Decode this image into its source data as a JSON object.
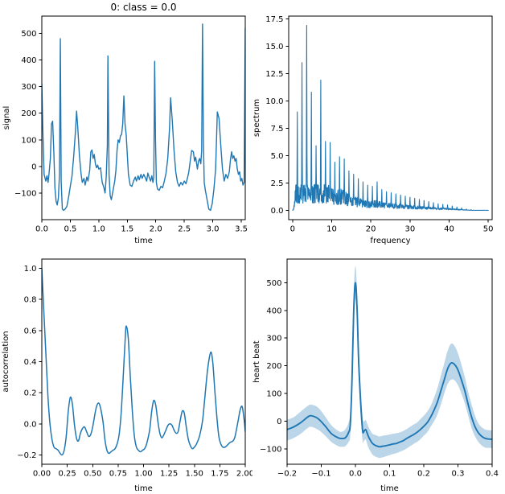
{
  "figure": {
    "background": "#ffffff",
    "line_color": "#1f77b4",
    "band_fill": "rgba(31,119,180,0.30)",
    "axis_color": "#000000",
    "text_color": "#000000"
  },
  "chart_data": [
    {
      "id": "signal",
      "type": "line",
      "title": "0: class = 0.0",
      "xlabel": "time",
      "ylabel": "signal",
      "xlim": [
        0,
        3.57
      ],
      "ylim": [
        -200,
        565
      ],
      "xticks": [
        0,
        0.5,
        1.0,
        1.5,
        2.0,
        2.5,
        3.0,
        3.5
      ],
      "xtick_labels": [
        "0.0",
        "0.5",
        "1.0",
        "1.5",
        "2.0",
        "2.5",
        "3.0",
        "3.5"
      ],
      "yticks": [
        -100,
        0,
        100,
        200,
        300,
        400,
        500
      ],
      "ytick_labels": [
        "−100",
        "0",
        "100",
        "200",
        "300",
        "400",
        "500"
      ],
      "grid": false,
      "x": [
        0.0,
        0.02,
        0.04,
        0.07,
        0.09,
        0.11,
        0.13,
        0.15,
        0.17,
        0.19,
        0.21,
        0.23,
        0.25,
        0.27,
        0.29,
        0.31,
        0.325,
        0.34,
        0.36,
        0.38,
        0.41,
        0.44,
        0.47,
        0.5,
        0.53,
        0.56,
        0.59,
        0.61,
        0.63,
        0.66,
        0.69,
        0.71,
        0.74,
        0.76,
        0.79,
        0.81,
        0.84,
        0.86,
        0.88,
        0.9,
        0.92,
        0.94,
        0.96,
        0.98,
        1.0,
        1.03,
        1.06,
        1.09,
        1.11,
        1.13,
        1.15,
        1.16,
        1.18,
        1.2,
        1.22,
        1.25,
        1.28,
        1.3,
        1.32,
        1.34,
        1.36,
        1.38,
        1.4,
        1.42,
        1.44,
        1.46,
        1.48,
        1.5,
        1.52,
        1.55,
        1.58,
        1.61,
        1.64,
        1.66,
        1.69,
        1.71,
        1.74,
        1.76,
        1.79,
        1.81,
        1.84,
        1.86,
        1.89,
        1.91,
        1.93,
        1.95,
        1.965,
        1.98,
        1.995,
        2.01,
        2.03,
        2.06,
        2.09,
        2.12,
        2.15,
        2.18,
        2.21,
        2.24,
        2.26,
        2.29,
        2.32,
        2.35,
        2.38,
        2.41,
        2.44,
        2.47,
        2.5,
        2.53,
        2.56,
        2.58,
        2.61,
        2.63,
        2.66,
        2.68,
        2.7,
        2.73,
        2.75,
        2.77,
        2.79,
        2.805,
        2.82,
        2.835,
        2.85,
        2.87,
        2.9,
        2.93,
        2.96,
        2.99,
        3.02,
        3.05,
        3.08,
        3.11,
        3.14,
        3.17,
        3.2,
        3.23,
        3.26,
        3.29,
        3.31,
        3.33,
        3.35,
        3.37,
        3.39,
        3.41,
        3.43,
        3.45,
        3.47,
        3.49,
        3.51,
        3.53,
        3.55,
        3.57
      ],
      "y": [
        310,
        120,
        -30,
        -55,
        -35,
        -60,
        -20,
        30,
        160,
        170,
        60,
        -80,
        -130,
        -145,
        -120,
        -30,
        480,
        -60,
        -160,
        -165,
        -160,
        -150,
        -115,
        -75,
        -35,
        40,
        130,
        208,
        150,
        40,
        -30,
        -60,
        -45,
        -70,
        -40,
        -55,
        -15,
        55,
        62,
        30,
        45,
        10,
        -5,
        5,
        -10,
        -5,
        -60,
        -80,
        -100,
        -40,
        80,
        415,
        -30,
        -110,
        -125,
        -90,
        -55,
        -15,
        60,
        100,
        90,
        115,
        120,
        160,
        265,
        160,
        120,
        45,
        -30,
        -70,
        -75,
        -55,
        -40,
        -55,
        -35,
        -50,
        -30,
        -45,
        -30,
        -40,
        -55,
        -25,
        -45,
        -55,
        -35,
        -60,
        -40,
        395,
        100,
        -60,
        -85,
        -90,
        -75,
        -80,
        -55,
        -25,
        30,
        140,
        258,
        170,
        60,
        -20,
        -60,
        -75,
        -60,
        -70,
        -55,
        -65,
        -40,
        -20,
        30,
        60,
        55,
        20,
        35,
        -10,
        20,
        30,
        10,
        60,
        535,
        100,
        -60,
        -90,
        -125,
        -160,
        -165,
        -140,
        -85,
        -10,
        205,
        180,
        80,
        -10,
        -55,
        -30,
        -45,
        -20,
        25,
        55,
        30,
        40,
        20,
        30,
        -10,
        -30,
        -20,
        -55,
        -45,
        -70,
        -60,
        520
      ]
    },
    {
      "id": "spectrum",
      "type": "line",
      "title": "",
      "xlabel": "frequency",
      "ylabel": "spectrum",
      "xlim": [
        -1,
        51
      ],
      "ylim": [
        -0.85,
        17.75
      ],
      "xticks": [
        0,
        10,
        20,
        30,
        40,
        50
      ],
      "xtick_labels": [
        "0",
        "10",
        "20",
        "30",
        "40",
        "50"
      ],
      "yticks": [
        0,
        2.5,
        5.0,
        7.5,
        10.0,
        12.5,
        15.0,
        17.5
      ],
      "ytick_labels": [
        "0.0",
        "2.5",
        "5.0",
        "7.5",
        "10.0",
        "12.5",
        "15.0",
        "17.5"
      ],
      "grid": false,
      "harmonic_peaks": [
        [
          1.2,
          9.0
        ],
        [
          2.4,
          13.5
        ],
        [
          3.6,
          16.9
        ],
        [
          4.8,
          10.8
        ],
        [
          6.0,
          5.9
        ],
        [
          7.2,
          11.9
        ],
        [
          8.4,
          6.3
        ],
        [
          9.6,
          6.2
        ],
        [
          10.8,
          4.4
        ],
        [
          12.0,
          4.9
        ],
        [
          13.2,
          4.7
        ],
        [
          14.4,
          3.6
        ],
        [
          15.6,
          3.3
        ],
        [
          16.8,
          2.9
        ],
        [
          18.0,
          2.6
        ],
        [
          19.2,
          2.3
        ],
        [
          20.4,
          2.2
        ],
        [
          21.6,
          2.6
        ],
        [
          22.8,
          1.9
        ],
        [
          24.0,
          1.7
        ],
        [
          25.2,
          1.6
        ],
        [
          26.4,
          1.5
        ],
        [
          27.6,
          1.4
        ],
        [
          28.8,
          1.3
        ],
        [
          30.0,
          1.2
        ],
        [
          31.2,
          1.1
        ],
        [
          32.4,
          1.0
        ],
        [
          33.6,
          0.9
        ],
        [
          34.8,
          0.8
        ],
        [
          36.0,
          0.7
        ],
        [
          37.2,
          0.6
        ],
        [
          38.4,
          0.55
        ],
        [
          39.6,
          0.5
        ],
        [
          40.8,
          0.4
        ],
        [
          42.0,
          0.3
        ],
        [
          43.2,
          0.22
        ],
        [
          44.4,
          0.12
        ],
        [
          45.6,
          0.06
        ]
      ]
    },
    {
      "id": "autocorrelation",
      "type": "line",
      "title": "",
      "xlabel": "time",
      "ylabel": "autocorrelation",
      "xlim": [
        0,
        2
      ],
      "ylim": [
        -0.26,
        1.06
      ],
      "smooth": true,
      "xticks": [
        0,
        0.25,
        0.5,
        0.75,
        1.0,
        1.25,
        1.5,
        1.75,
        2.0
      ],
      "xtick_labels": [
        "0.00",
        "0.25",
        "0.50",
        "0.75",
        "1.00",
        "1.25",
        "1.50",
        "1.75",
        "2.00"
      ],
      "yticks": [
        -0.2,
        0.0,
        0.2,
        0.4,
        0.6,
        0.8,
        1.0
      ],
      "ytick_labels": [
        "−0.2",
        "0.0",
        "0.2",
        "0.4",
        "0.6",
        "0.8",
        "1.0"
      ],
      "grid": false,
      "x": [
        0.0,
        0.02,
        0.04,
        0.06,
        0.08,
        0.1,
        0.12,
        0.14,
        0.16,
        0.18,
        0.2,
        0.22,
        0.24,
        0.26,
        0.28,
        0.3,
        0.32,
        0.34,
        0.36,
        0.38,
        0.4,
        0.42,
        0.44,
        0.46,
        0.48,
        0.5,
        0.53,
        0.55,
        0.57,
        0.6,
        0.62,
        0.64,
        0.66,
        0.68,
        0.7,
        0.72,
        0.74,
        0.76,
        0.78,
        0.8,
        0.82,
        0.83,
        0.85,
        0.87,
        0.89,
        0.91,
        0.93,
        0.95,
        0.97,
        0.99,
        1.01,
        1.03,
        1.06,
        1.08,
        1.1,
        1.12,
        1.14,
        1.16,
        1.18,
        1.2,
        1.22,
        1.24,
        1.26,
        1.28,
        1.3,
        1.32,
        1.34,
        1.36,
        1.38,
        1.4,
        1.42,
        1.44,
        1.46,
        1.48,
        1.5,
        1.52,
        1.55,
        1.58,
        1.6,
        1.63,
        1.66,
        1.68,
        1.7,
        1.72,
        1.74,
        1.76,
        1.78,
        1.8,
        1.82,
        1.85,
        1.88,
        1.9,
        1.93,
        1.95,
        1.97,
        1.99,
        2.0
      ],
      "y": [
        1.0,
        0.72,
        0.45,
        0.18,
        0.0,
        -0.1,
        -0.15,
        -0.16,
        -0.17,
        -0.19,
        -0.2,
        -0.17,
        -0.08,
        0.08,
        0.17,
        0.13,
        0.0,
        -0.09,
        -0.11,
        -0.06,
        -0.03,
        -0.02,
        -0.05,
        -0.08,
        -0.07,
        -0.02,
        0.09,
        0.13,
        0.12,
        0.02,
        -0.1,
        -0.17,
        -0.19,
        -0.18,
        -0.17,
        -0.16,
        -0.13,
        -0.07,
        0.07,
        0.3,
        0.55,
        0.63,
        0.55,
        0.3,
        0.08,
        -0.08,
        -0.15,
        -0.17,
        -0.18,
        -0.17,
        -0.16,
        -0.13,
        -0.04,
        0.08,
        0.15,
        0.12,
        0.02,
        -0.06,
        -0.09,
        -0.07,
        -0.04,
        -0.01,
        0.0,
        -0.01,
        -0.04,
        -0.06,
        -0.05,
        0.02,
        0.08,
        0.07,
        -0.02,
        -0.1,
        -0.14,
        -0.16,
        -0.15,
        -0.13,
        -0.08,
        0.02,
        0.15,
        0.35,
        0.46,
        0.4,
        0.22,
        0.05,
        -0.08,
        -0.13,
        -0.15,
        -0.15,
        -0.14,
        -0.12,
        -0.11,
        -0.08,
        0.02,
        0.09,
        0.11,
        0.02,
        -0.05
      ]
    },
    {
      "id": "heart-beat",
      "type": "line-band",
      "title": "",
      "xlabel": "time",
      "ylabel": "heart beat",
      "xlim": [
        -0.2,
        0.4
      ],
      "ylim": [
        -155,
        585
      ],
      "smooth": true,
      "xticks": [
        -0.2,
        -0.1,
        0.0,
        0.1,
        0.2,
        0.3,
        0.4
      ],
      "xtick_labels": [
        "−0.2",
        "−0.1",
        "0.0",
        "0.1",
        "0.2",
        "0.3",
        "0.4"
      ],
      "yticks": [
        -100,
        0,
        100,
        200,
        300,
        400,
        500
      ],
      "ytick_labels": [
        "−100",
        "0",
        "100",
        "200",
        "300",
        "400",
        "500"
      ],
      "grid": false,
      "x": [
        -0.2,
        -0.18,
        -0.16,
        -0.14,
        -0.13,
        -0.11,
        -0.09,
        -0.07,
        -0.05,
        -0.04,
        -0.03,
        -0.02,
        -0.015,
        -0.01,
        -0.005,
        0.0,
        0.005,
        0.01,
        0.02,
        0.025,
        0.03,
        0.035,
        0.04,
        0.05,
        0.06,
        0.07,
        0.08,
        0.09,
        0.1,
        0.11,
        0.12,
        0.13,
        0.14,
        0.15,
        0.16,
        0.17,
        0.18,
        0.19,
        0.2,
        0.21,
        0.22,
        0.23,
        0.24,
        0.25,
        0.26,
        0.27,
        0.28,
        0.29,
        0.3,
        0.31,
        0.32,
        0.33,
        0.34,
        0.35,
        0.36,
        0.37,
        0.38,
        0.39,
        0.4
      ],
      "mean": [
        -30,
        -20,
        -5,
        15,
        20,
        10,
        -15,
        -45,
        -60,
        -62,
        -60,
        -40,
        -10,
        150,
        400,
        500,
        400,
        200,
        -20,
        -35,
        -30,
        -45,
        -60,
        -80,
        -88,
        -92,
        -90,
        -88,
        -85,
        -82,
        -80,
        -75,
        -70,
        -62,
        -55,
        -48,
        -40,
        -30,
        -18,
        -5,
        15,
        40,
        70,
        110,
        150,
        190,
        210,
        205,
        185,
        150,
        110,
        60,
        15,
        -20,
        -42,
        -55,
        -62,
        -64,
        -65
      ],
      "band_lo": [
        -70,
        -60,
        -45,
        -25,
        -20,
        -30,
        -50,
        -75,
        -90,
        -92,
        -90,
        -75,
        -50,
        90,
        340,
        440,
        330,
        140,
        -60,
        -70,
        -65,
        -85,
        -100,
        -120,
        -128,
        -132,
        -130,
        -126,
        -122,
        -118,
        -115,
        -110,
        -105,
        -98,
        -90,
        -82,
        -75,
        -65,
        -52,
        -40,
        -20,
        0,
        25,
        60,
        100,
        135,
        150,
        148,
        130,
        100,
        65,
        20,
        -25,
        -55,
        -75,
        -88,
        -95,
        -96,
        -97
      ],
      "band_hi": [
        5,
        15,
        35,
        55,
        60,
        50,
        20,
        -15,
        -35,
        -38,
        -30,
        -5,
        40,
        210,
        460,
        560,
        460,
        260,
        30,
        0,
        5,
        -10,
        -25,
        -45,
        -50,
        -55,
        -52,
        -50,
        -48,
        -45,
        -43,
        -40,
        -35,
        -28,
        -20,
        -12,
        -5,
        8,
        20,
        35,
        55,
        85,
        120,
        165,
        210,
        255,
        280,
        272,
        245,
        205,
        160,
        105,
        60,
        20,
        -8,
        -22,
        -30,
        -32,
        -33
      ]
    }
  ]
}
